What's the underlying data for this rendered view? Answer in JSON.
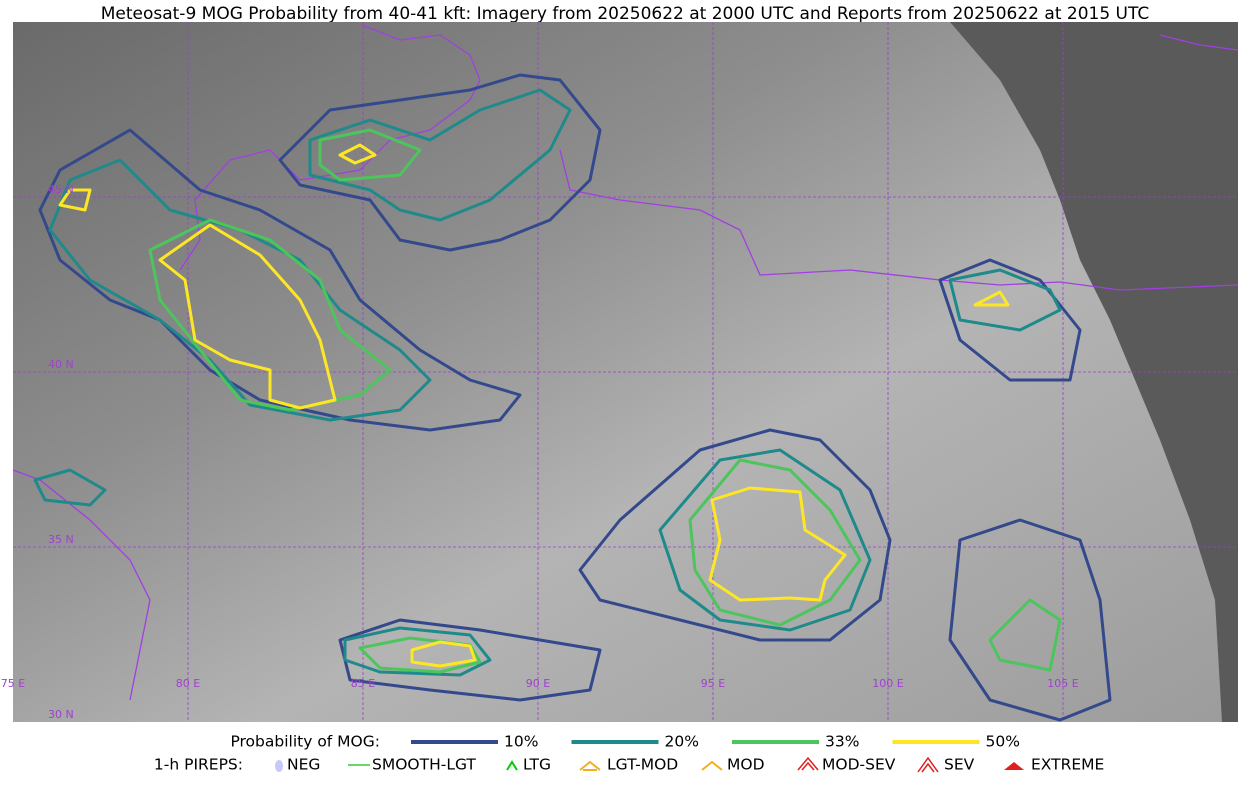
{
  "title": "Meteosat-9 MOG Probability from 40-41 kft: Imagery from 20250622 at 2000 UTC and Reports from 20250622 at 2015 UTC",
  "map": {
    "lat_labels": [
      "45 N",
      "40 N",
      "35 N",
      "30 N"
    ],
    "lon_labels": [
      "75 E",
      "80 E",
      "85 E",
      "90 E",
      "95 E",
      "100 E",
      "105 E"
    ]
  },
  "legend": {
    "title": "Probability of MOG:",
    "items": [
      {
        "label": "10%",
        "color": "#34498c"
      },
      {
        "label": "20%",
        "color": "#1f8a8a"
      },
      {
        "label": "33%",
        "color": "#4cc55c"
      },
      {
        "label": "50%",
        "color": "#fde725"
      }
    ]
  },
  "pireps": {
    "title": "1-h PIREPS:",
    "items": [
      {
        "label": "NEG"
      },
      {
        "label": "SMOOTH-LGT"
      },
      {
        "label": "LTG"
      },
      {
        "label": "LGT-MOD"
      },
      {
        "label": "MOD"
      },
      {
        "label": "MOD-SEV"
      },
      {
        "label": "SEV"
      },
      {
        "label": "EXTREME"
      }
    ]
  }
}
